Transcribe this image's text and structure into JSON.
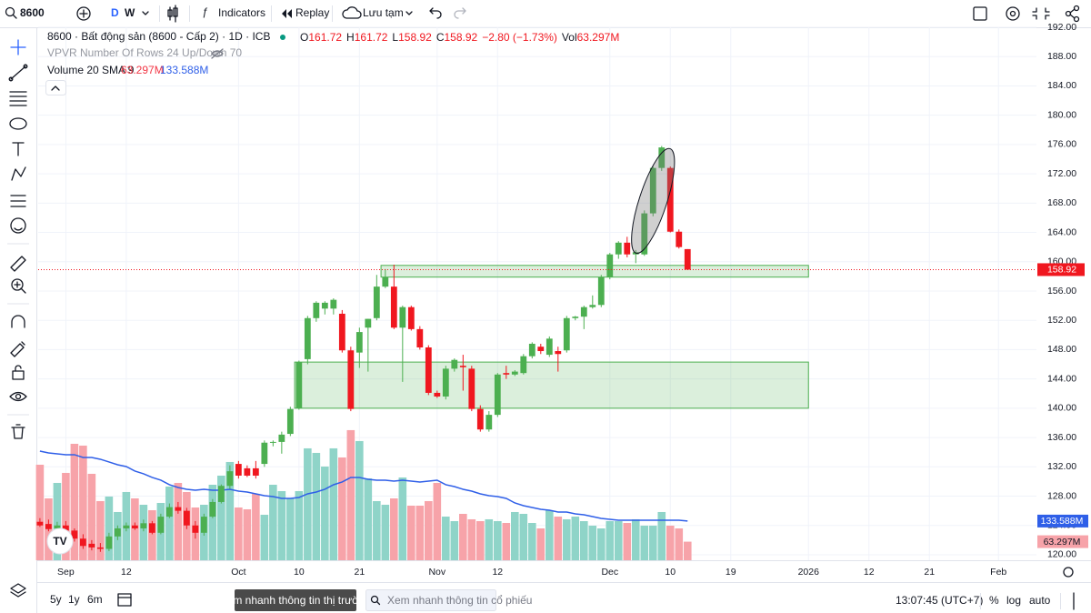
{
  "toolbar": {
    "symbol": "8600",
    "intervals": [
      "D",
      "W"
    ],
    "indicators": "Indicators",
    "replay": "Replay",
    "save": "Lưu tạm"
  },
  "chart_data": {
    "type": "candlestick",
    "title": "8600 · Bất động sản (8600 - Cấp 2) · 1D · ICB",
    "ohlc_letters": [
      "O",
      "H",
      "L",
      "C"
    ],
    "change": "−2.80 (−1.73%)",
    "volume_letter": "Vol",
    "vpvr": "VPVR Number Of Rows 24 Up/Down 70",
    "volume_title": "Volume 20 SMA 9",
    "last_volume_label": "63.297M",
    "last_ma_label": "133.588M",
    "up_color": "#4caf50",
    "down_color": "#f0171f",
    "volume_up_color": "#8fd4c8",
    "volume_down_color": "#f7a3a9",
    "ma_color": "#2f5fe8",
    "grid": true,
    "xlim": [
      -0.2,
      115.4
    ],
    "ylim": [
      119.25,
      192
    ],
    "vlim": [
      0,
      1816
    ],
    "xticks": [
      {
        "value": 3,
        "label": "Sep"
      },
      {
        "value": 10,
        "label": "12"
      },
      {
        "value": 23,
        "label": "Oct"
      },
      {
        "value": 30,
        "label": "10"
      },
      {
        "value": 37,
        "label": "21"
      },
      {
        "value": 46,
        "label": "Nov"
      },
      {
        "value": 53,
        "label": "12"
      },
      {
        "value": 66,
        "label": "Dec"
      },
      {
        "value": 73,
        "label": "10"
      },
      {
        "value": 80,
        "label": "19"
      },
      {
        "value": 89,
        "label": "2026"
      },
      {
        "value": 96,
        "label": "12"
      },
      {
        "value": 103,
        "label": "21"
      },
      {
        "value": 111,
        "label": "Feb"
      }
    ],
    "yticks": [
      {
        "value": 120,
        "label": "120.00"
      },
      {
        "value": 124,
        "label": "124.00"
      },
      {
        "value": 128,
        "label": "128.00"
      },
      {
        "value": 132,
        "label": "132.00"
      },
      {
        "value": 136,
        "label": "136.00"
      },
      {
        "value": 140,
        "label": "140.00"
      },
      {
        "value": 144,
        "label": "144.00"
      },
      {
        "value": 148,
        "label": "148.00"
      },
      {
        "value": 152,
        "label": "152.00"
      },
      {
        "value": 156,
        "label": "156.00"
      },
      {
        "value": 160,
        "label": "160.00"
      },
      {
        "value": 164,
        "label": "164.00"
      },
      {
        "value": 168,
        "label": "168.00"
      },
      {
        "value": 172,
        "label": "172.00"
      },
      {
        "value": 176,
        "label": "176.00"
      },
      {
        "value": 180,
        "label": "180.00"
      },
      {
        "value": 184,
        "label": "184.00"
      },
      {
        "value": 188,
        "label": "188.00"
      },
      {
        "value": 192,
        "label": "192.00"
      }
    ],
    "open": [
      124.5,
      124.2,
      123.6,
      124,
      123.3,
      122.2,
      121.5,
      121,
      120.8,
      122.5,
      123.6,
      124,
      123.6,
      124.3,
      123,
      125.2,
      126.5,
      126,
      124,
      123,
      125.2,
      127.2,
      129.4,
      132.4,
      131.8,
      131.8,
      132.4,
      135.3,
      135.4,
      136.5,
      140,
      146.7,
      152.3,
      153.6,
      153.6,
      152.9,
      147.9,
      147.6,
      151,
      152.3,
      156.6,
      156.6,
      151,
      153.8,
      150.8,
      148.3,
      142.1,
      141.6,
      145.4,
      145.8,
      145.4,
      139.9,
      137.1,
      139.1,
      144.8,
      144.6,
      144.8,
      147.1,
      148.4,
      147.3,
      147.8,
      147.9,
      152.3,
      152.5,
      153.8,
      154.1,
      157.9,
      161,
      162.6,
      161,
      161,
      166.6,
      172.8,
      172.8,
      164.1,
      161.72
    ],
    "high": [
      125,
      124.8,
      124.5,
      124.6,
      123.6,
      122.8,
      122,
      121.6,
      123,
      124,
      124.4,
      124.4,
      124.8,
      124.6,
      125.6,
      127,
      127.2,
      126.4,
      124.6,
      125.6,
      127.6,
      129.6,
      132.2,
      132.8,
      132.2,
      132.8,
      135.6,
      135.6,
      136.8,
      140.2,
      146.5,
      152.6,
      154.6,
      154.6,
      155,
      153.4,
      148.4,
      151,
      152.2,
      158.2,
      159,
      159.6,
      154,
      154,
      151.2,
      148.6,
      142.4,
      145.8,
      146.8,
      147.3,
      145.8,
      140.4,
      139.6,
      144.8,
      145.8,
      145.2,
      147.4,
      149,
      148.8,
      149.8,
      148.4,
      152.6,
      152.6,
      154,
      155.4,
      158.2,
      161.2,
      162.8,
      163.4,
      161.6,
      167,
      173,
      175.8,
      173,
      164.4,
      161.72
    ],
    "low": [
      123.8,
      123.2,
      122.8,
      123,
      121.8,
      120.8,
      120.6,
      120.4,
      120.5,
      122,
      123.2,
      123.4,
      123.2,
      122.8,
      122.8,
      125,
      125.6,
      123.5,
      122.2,
      122.6,
      125,
      127,
      129,
      130.4,
      130.6,
      130.4,
      132,
      134.8,
      133.8,
      136.2,
      139.8,
      146,
      151.8,
      152.8,
      152.8,
      147.6,
      139.6,
      145.5,
      145,
      152,
      156.4,
      150.8,
      143.6,
      150.6,
      148,
      141.8,
      141.4,
      141.2,
      145,
      142.4,
      139.6,
      136.8,
      136.8,
      138.8,
      144,
      144.4,
      144.6,
      146.8,
      147.4,
      147,
      145,
      147.6,
      152,
      150.8,
      153.6,
      153.8,
      157.6,
      160.4,
      160.6,
      159.8,
      160.8,
      166.2,
      172.4,
      164,
      161.8,
      158.92
    ],
    "close": [
      124,
      123.5,
      124,
      123.3,
      122.2,
      121.2,
      121,
      120.8,
      122.5,
      123.6,
      124,
      123.6,
      124.3,
      123,
      125.2,
      126.5,
      126,
      124,
      123,
      125.2,
      127.2,
      129.4,
      131.4,
      130.8,
      130.8,
      130.8,
      135.3,
      135.4,
      136.4,
      139.9,
      146.3,
      152.3,
      154.4,
      154.4,
      154.8,
      147.9,
      139.9,
      150.4,
      152.2,
      156.6,
      157.9,
      151,
      153.8,
      150.8,
      148.3,
      142.1,
      141.6,
      145.4,
      146.6,
      145.6,
      139.9,
      137.1,
      139.1,
      144.6,
      144.6,
      145,
      147.1,
      148.8,
      147.8,
      149.5,
      147.4,
      152.3,
      152.5,
      153.8,
      154.1,
      157.9,
      161,
      162.6,
      161,
      161.3,
      166.6,
      172.8,
      175.6,
      164.1,
      162,
      158.92
    ],
    "volume": [
      325.5,
      210.8,
      263.5,
      297.6,
      396.8,
      390.6,
      294.5,
      201.5,
      217,
      164.3,
      232.5,
      210.8,
      189.1,
      170.5,
      195.3,
      251.1,
      263.5,
      232.5,
      179.8,
      189.1,
      257.3,
      288.3,
      334.8,
      179.8,
      173.6,
      226.3,
      155,
      257.3,
      235.6,
      210.8,
      235.6,
      381.3,
      365.8,
      319.3,
      381.3,
      350.3,
      443.3,
      406.1,
      279,
      201.5,
      189.1,
      210.8,
      282.1,
      186,
      186,
      201.5,
      263.5,
      148.8,
      133.3,
      158.1,
      139.5,
      133.3,
      139.5,
      133.3,
      127.1,
      164.3,
      158.1,
      127.1,
      108.5,
      170.5,
      148.8,
      139.5,
      148.8,
      133.3,
      117.8,
      108.5,
      133.3,
      133.3,
      127.1,
      139.5,
      117.8,
      117.8,
      164.3,
      117.8,
      108.5,
      63.297
    ],
    "volume_ma": [
      372,
      365.8,
      362.7,
      359.6,
      359.6,
      350.3,
      350.3,
      344.1,
      334.8,
      325.5,
      319.3,
      303.8,
      294.5,
      282.1,
      272.8,
      257.3,
      248,
      241.8,
      238.7,
      241.8,
      238.7,
      238.7,
      241.8,
      235.6,
      232.5,
      226.3,
      220.1,
      217,
      210.8,
      210.8,
      213.9,
      226.3,
      232.5,
      241.8,
      257.3,
      266.6,
      282.1,
      282.1,
      275.9,
      272.8,
      272.8,
      269.7,
      272.8,
      269.7,
      266.6,
      269.7,
      272.8,
      257.3,
      251.1,
      241.8,
      235.6,
      226.3,
      220.1,
      217,
      210.8,
      195.3,
      186,
      179.8,
      173.6,
      170.5,
      164.3,
      164.3,
      158.1,
      155,
      148.8,
      142.6,
      139.5,
      136.4,
      136.4,
      136.4,
      136.4,
      136.4,
      136.4,
      136.4,
      136.4,
      133.588
    ],
    "zones": [
      {
        "x": [
          39.5,
          89
        ],
        "y": [
          157.9,
          159.5
        ]
      },
      {
        "x": [
          29.5,
          89
        ],
        "y": [
          140,
          146.3
        ]
      }
    ],
    "ellipse": {
      "x": [
        69.4,
        72.6
      ],
      "y": [
        160.8,
        175.8
      ]
    }
  },
  "bottom_bar": {
    "ranges": [
      "5y",
      "1y",
      "6m"
    ],
    "market_button": "Xem nhanh thông tin thị trường",
    "search_placeholder": "Xem nhanh thông tin cổ phiếu",
    "clock": "13:07:45 (UTC+7)",
    "options": [
      "%",
      "log",
      "auto"
    ]
  }
}
